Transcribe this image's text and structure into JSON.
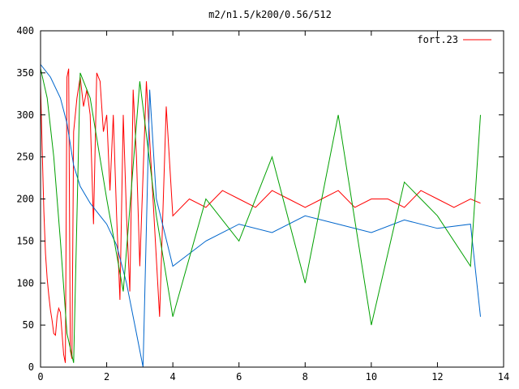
{
  "chart_data": {
    "type": "line",
    "title": "m2/n1.5/k200/0.56/512",
    "xlabel": "",
    "ylabel": "",
    "xlim": [
      0,
      14
    ],
    "ylim": [
      0,
      400
    ],
    "x_ticks": [
      0,
      2,
      4,
      6,
      8,
      10,
      12,
      14
    ],
    "y_ticks": [
      0,
      50,
      100,
      150,
      200,
      250,
      300,
      350,
      400
    ],
    "x_tick_labels": [
      "0",
      "2",
      "4",
      "6",
      "8",
      "10",
      "12",
      "14"
    ],
    "y_tick_labels": [
      "0",
      "50",
      "100",
      "150",
      "200",
      "250",
      "300",
      "350",
      "400"
    ],
    "grid": false,
    "legend_position": "top-right",
    "wrap_max": 360,
    "series": [
      {
        "name": "fort.23",
        "color": "#ff0000",
        "x": [
          0,
          0.05,
          0.1,
          0.15,
          0.2,
          0.25,
          0.3,
          0.35,
          0.4,
          0.45,
          0.5,
          0.55,
          0.6,
          0.65,
          0.7,
          0.75,
          0.8,
          0.85,
          0.9,
          0.95,
          1.0,
          1.1,
          1.2,
          1.3,
          1.4,
          1.5,
          1.6,
          1.7,
          1.8,
          1.9,
          2.0,
          2.1,
          2.2,
          2.3,
          2.4,
          2.5,
          2.6,
          2.7,
          2.8,
          2.9,
          3.0,
          3.2,
          3.4,
          3.6,
          3.8,
          4.0,
          4.5,
          5.0,
          5.5,
          6.0,
          6.5,
          7.0,
          7.5,
          8.0,
          8.5,
          9.0,
          9.5,
          10.0,
          10.5,
          11.0,
          11.5,
          12.0,
          12.5,
          13.0,
          13.3
        ],
        "y": [
          335,
          260,
          185,
          135,
          105,
          85,
          68,
          55,
          40,
          38,
          60,
          70,
          65,
          40,
          15,
          5,
          345,
          355,
          20,
          10,
          280,
          320,
          345,
          310,
          330,
          300,
          170,
          350,
          340,
          280,
          300,
          210,
          300,
          180,
          80,
          300,
          180,
          90,
          330,
          250,
          120,
          340,
          200,
          60,
          310,
          180,
          200,
          190,
          210,
          200,
          190,
          210,
          200,
          190,
          200,
          210,
          190,
          200,
          200,
          190,
          210,
          200,
          190,
          200,
          195
        ],
        "wrap_rate": 0
      },
      {
        "name": "",
        "color": "#0066cc",
        "x": [
          0,
          0.3,
          0.6,
          0.8,
          1.0,
          1.2,
          1.5,
          1.8,
          2.0,
          2.3,
          2.6,
          2.9,
          3.1,
          3.3,
          3.5,
          4.0,
          5.0,
          6.0,
          7.0,
          8.0,
          9.0,
          10.0,
          11.0,
          12.0,
          13.0,
          13.3
        ],
        "y": [
          360,
          345,
          320,
          290,
          240,
          215,
          195,
          180,
          170,
          145,
          100,
          40,
          0,
          330,
          200,
          120,
          150,
          170,
          160,
          180,
          170,
          160,
          175,
          165,
          170,
          60
        ],
        "wrap_rate": 0
      },
      {
        "name": "",
        "color": "#00a000",
        "x": [
          0,
          0.2,
          0.4,
          0.6,
          0.8,
          1.0,
          1.2,
          1.5,
          2.0,
          2.5,
          3.0,
          3.5,
          4.0,
          5.0,
          6.0,
          7.0,
          8.0,
          9.0,
          10.0,
          11.0,
          12.0,
          13.0,
          13.3
        ],
        "y": [
          355,
          320,
          250,
          150,
          40,
          5,
          350,
          320,
          200,
          90,
          340,
          180,
          60,
          200,
          150,
          250,
          100,
          300,
          50,
          220,
          180,
          120,
          300
        ],
        "wrap_rate": 0
      }
    ]
  }
}
